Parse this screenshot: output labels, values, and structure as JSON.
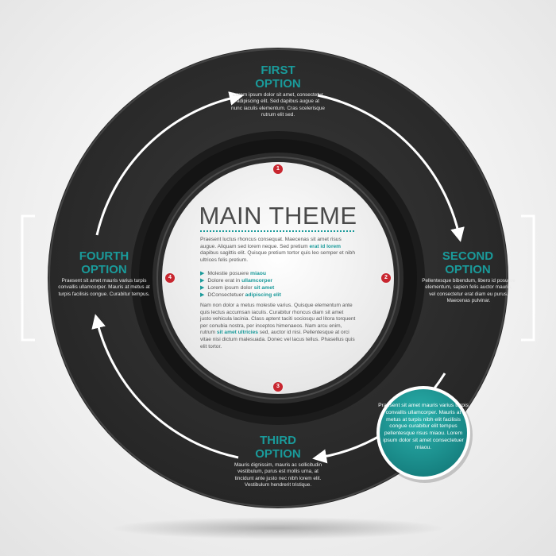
{
  "main_theme": {
    "title": "MAIN THEME",
    "para1_a": "Praesent luctus rhoncus consequat. Maecenas sit amet risus augue. Aliquam sed lorem neque. Sed pretium ",
    "para1_hl": "erat id lorem",
    "para1_b": " dapibus sagittis elit. Quisque pretium tortor quis leo semper et nibh ultrices felis pretium.",
    "bullets": [
      {
        "text": "Molestie posuere ",
        "hl": "miaou"
      },
      {
        "text": "Dolore erat in ",
        "hl": "ullamcorper"
      },
      {
        "text": "Lorem ipsum dolor ",
        "hl": "sit amet"
      },
      {
        "text": "DConsectetuer ",
        "hl": "adipiscing elit"
      }
    ],
    "para2_a": "Nam non dolor a metus molestie varius. Quisque elementum ante quis lectus accumsan iaculis. Curabitur rhoncus diam sit amet justo vehicula lacinia. Class aptent taciti sociosqu ad litora torquent per conubia nostra, per inceptos himenaeos. Nam arcu enim, rutrum ",
    "para2_hl": "sit amet ultricies",
    "para2_b": " sed, auctor id nisi. Pellentesque at orci vitae nisi dictum malesuada. Donec vel lacus tellus. Phasellus quis elit tortor."
  },
  "options": {
    "first": {
      "title_line1": "FIRST",
      "title_line2": "OPTION",
      "body": "Lorem ipsum dolor sit amet, consectetur adipiscing elit. Sed dapibus augue at nunc iaculis elementum. Cras scelerisque rutrum elit sed."
    },
    "second": {
      "title_line1": "SECOND",
      "title_line2": "OPTION",
      "body": "Pellentesque bibendum, libero id posuere elementum, sapien felis auctor mauris, vel consectetur erat diam eu purus. Maecenas pulvinar."
    },
    "third": {
      "title_line1": "THIRD",
      "title_line2": "OPTION",
      "body": "Mauris dignissim, mauris ac sollicitudin vestibulum, purus est mollis urna, at tincidunt ante justo nec nibh lorem elit. Vestibulum hendrerit tristique."
    },
    "fourth": {
      "title_line1": "FOURTH",
      "title_line2": "OPTION",
      "body": "Praesent sit amet mauris varius turpis convallis ullamcorper. Mauris at metus at turpis facilisis congue. Curabitur tempus."
    }
  },
  "numbers": {
    "n1": "1",
    "n2": "2",
    "n3": "3",
    "n4": "4"
  },
  "callout": {
    "text": "Praesent sit amet mauris varius turpis convallis ullamcorper. Mauris at metus at turpis nibh elit facilisis congue curabitur elit tempus pellentesque risus miaou. Lorem ipsum dolor sit amet consectetuer miaou."
  },
  "colors": {
    "accent_teal": "#1a9a9a",
    "dark_ring": "#2e2e2e",
    "marker_red": "#c8262f",
    "background": "#efefef"
  }
}
